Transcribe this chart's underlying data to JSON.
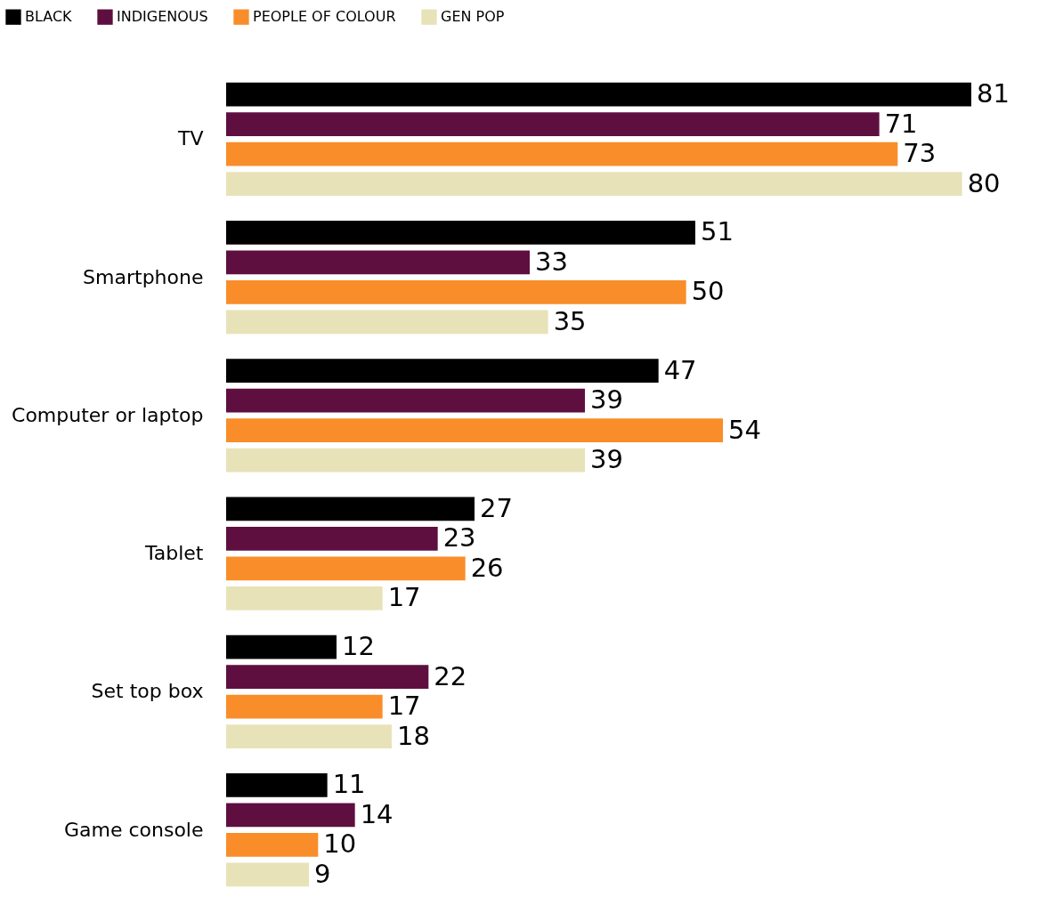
{
  "chart_data": {
    "type": "bar",
    "orientation": "horizontal",
    "categories": [
      "TV",
      "Smartphone",
      "Computer or laptop",
      "Tablet",
      "Set top box",
      "Game console"
    ],
    "series": [
      {
        "name": "BLACK",
        "color": "#000000",
        "values": [
          81,
          51,
          47,
          27,
          12,
          11
        ]
      },
      {
        "name": "INDIGENOUS",
        "color": "#5e0f3f",
        "values": [
          71,
          33,
          39,
          23,
          22,
          14
        ]
      },
      {
        "name": "PEOPLE OF COLOUR",
        "color": "#f98d29",
        "values": [
          73,
          50,
          54,
          26,
          17,
          10
        ]
      },
      {
        "name": "GEN POP",
        "color": "#e8e2b8",
        "values": [
          80,
          35,
          39,
          17,
          18,
          9
        ]
      }
    ],
    "data_labels": true,
    "legend": "top left",
    "grid": false
  }
}
